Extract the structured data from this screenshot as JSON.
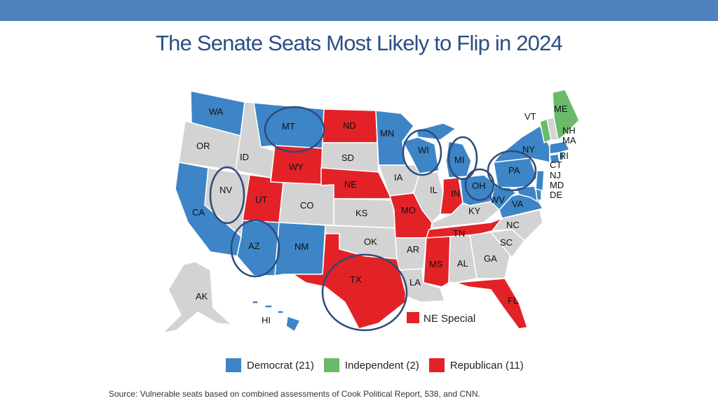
{
  "title": "The Senate Seats Most Likely to Flip in 2024",
  "colors": {
    "democrat": "#3d85c6",
    "independent": "#6aba6a",
    "republican": "#e32227",
    "none": "#d3d3d3",
    "circle": "#2f4a7a",
    "header_bar": "#4f81bd"
  },
  "states": {
    "WA": "WA",
    "OR": "OR",
    "CA": "CA",
    "ID": "ID",
    "NV": "NV",
    "MT": "MT",
    "WY": "WY",
    "UT": "UT",
    "AZ": "AZ",
    "CO": "CO",
    "NM": "NM",
    "ND": "ND",
    "SD": "SD",
    "NE": "NE",
    "KS": "KS",
    "OK": "OK",
    "TX": "TX",
    "MN": "MN",
    "IA": "IA",
    "MO": "MO",
    "AR": "AR",
    "LA": "LA",
    "WI": "WI",
    "IL": "IL",
    "MI": "MI",
    "IN": "IN",
    "OH": "OH",
    "KY": "KY",
    "TN": "TN",
    "MS": "MS",
    "AL": "AL",
    "GA": "GA",
    "FL": "FL",
    "SC": "SC",
    "NC": "NC",
    "VA": "VA",
    "WV": "WV",
    "PA": "PA",
    "NY": "NY",
    "VT": "VT",
    "NH": "NH",
    "ME": "ME",
    "MA": "MA",
    "RI": "RI",
    "CT": "CT",
    "NJ": "NJ",
    "MD": "MD",
    "DE": "DE",
    "AK": "AK",
    "HI": "HI"
  },
  "ne_special_label": "NE Special",
  "legend": {
    "democrat": "Democrat (21)",
    "independent": "Independent (2)",
    "republican": "Republican (11)"
  },
  "source": "Source: Vulnerable seats based on combined assessments of Cook Political Report, 538, and CNN."
}
